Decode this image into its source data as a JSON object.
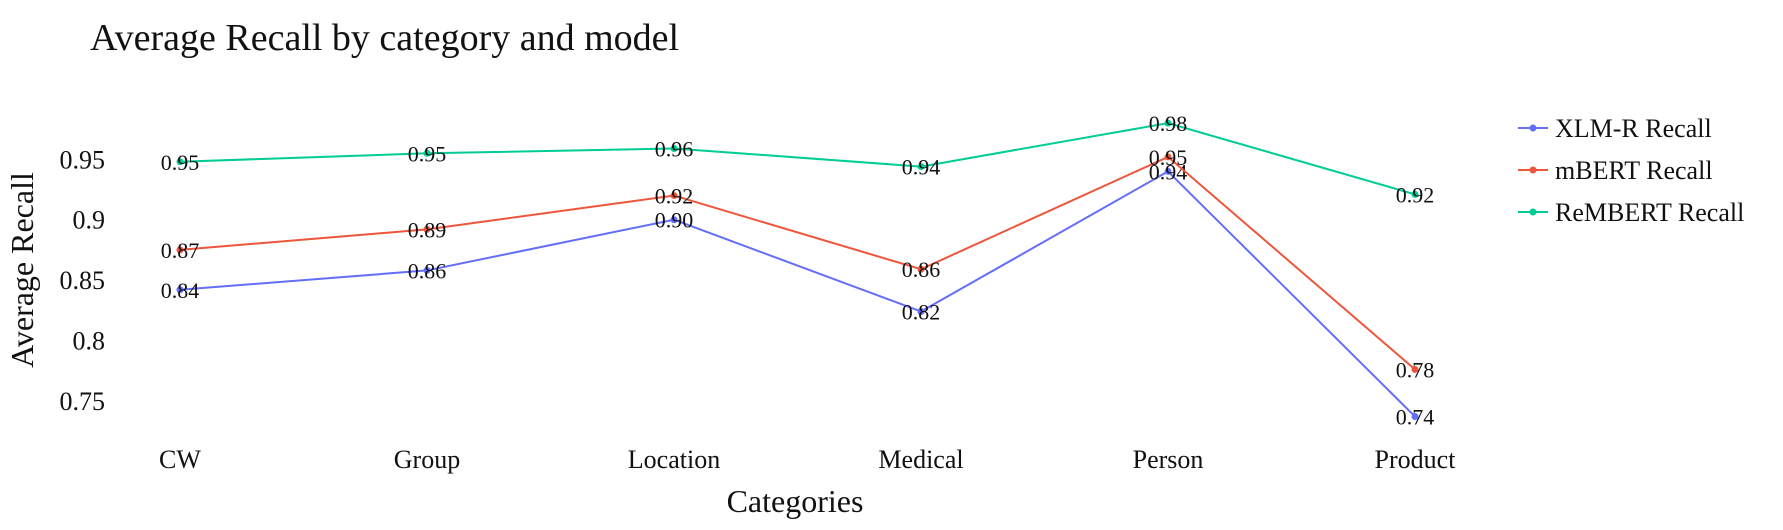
{
  "chart_data": {
    "type": "line",
    "title": "Average Recall by category and model",
    "xlabel": "Categories",
    "ylabel": "Average Recall",
    "categories": [
      "CW",
      "Group",
      "Location",
      "Medical",
      "Person",
      "Product"
    ],
    "ylim": [
      0.73,
      0.995
    ],
    "yticks": [
      0.75,
      0.8,
      0.85,
      0.9,
      0.95
    ],
    "ytick_labels": [
      "0.75",
      "0.8",
      "0.85",
      "0.9",
      "0.95"
    ],
    "grid": false,
    "legend_position": "top-right",
    "series": [
      {
        "name": "XLM-R Recall",
        "color": "#636efa",
        "values": [
          0.842,
          0.858,
          0.9,
          0.824,
          0.94,
          0.737
        ],
        "labels": [
          "0.84",
          "0.86",
          "0.90",
          "0.82",
          "0.94",
          "0.74"
        ]
      },
      {
        "name": "mBERT Recall",
        "color": "#ef553b",
        "values": [
          0.875,
          0.892,
          0.92,
          0.859,
          0.952,
          0.776
        ],
        "labels": [
          "0.87",
          "0.89",
          "0.92",
          "0.86",
          "0.95",
          "0.78"
        ]
      },
      {
        "name": "ReMBERT Recall",
        "color": "#00cc96",
        "values": [
          0.948,
          0.955,
          0.959,
          0.944,
          0.98,
          0.921
        ],
        "labels": [
          "0.95",
          "0.95",
          "0.96",
          "0.94",
          "0.98",
          "0.92"
        ]
      }
    ]
  }
}
